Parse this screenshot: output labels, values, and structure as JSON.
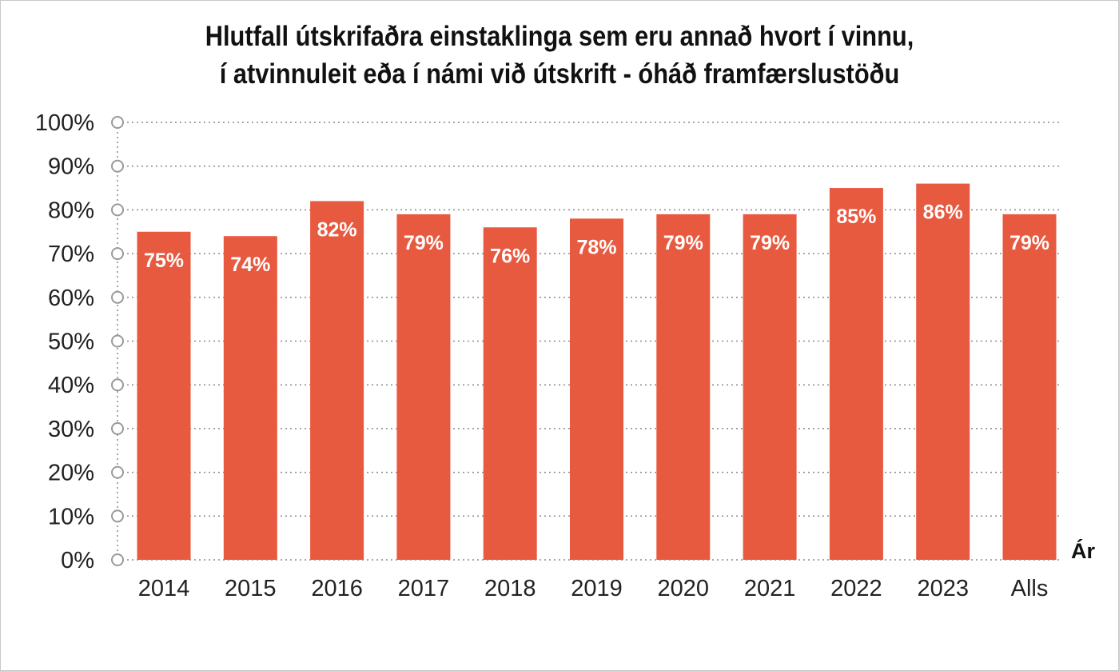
{
  "chart_data": {
    "type": "bar",
    "title_lines": [
      "Hlutfall útskrifaðra einstaklinga sem eru annað hvort í vinnu,",
      "í atvinnuleit eða í námi við útskrift - óháð framfærslustöðu"
    ],
    "categories": [
      "2014",
      "2015",
      "2016",
      "2017",
      "2018",
      "2019",
      "2020",
      "2021",
      "2022",
      "2023",
      "Alls"
    ],
    "values": [
      75,
      74,
      82,
      79,
      76,
      78,
      79,
      79,
      85,
      86,
      79
    ],
    "data_labels": [
      "75%",
      "74%",
      "82%",
      "79%",
      "76%",
      "78%",
      "79%",
      "79%",
      "85%",
      "86%",
      "79%"
    ],
    "xlabel": "Ár",
    "ylabel": "",
    "ylim": [
      0,
      100
    ],
    "yticks": [
      0,
      10,
      20,
      30,
      40,
      50,
      60,
      70,
      80,
      90,
      100
    ],
    "ytick_labels": [
      "0%",
      "10%",
      "20%",
      "30%",
      "40%",
      "50%",
      "60%",
      "70%",
      "80%",
      "90%",
      "100%"
    ],
    "grid": true,
    "legend": "none",
    "bar_color": "#e85a40",
    "grid_color": "#8a8a8a"
  }
}
